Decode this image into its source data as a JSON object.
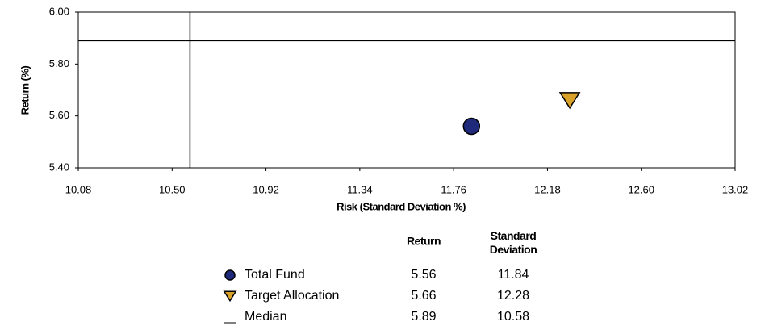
{
  "chart_data": {
    "type": "scatter",
    "xlabel": "Risk (Standard Deviation %)",
    "ylabel": "Return (%)",
    "xlim": [
      10.08,
      13.02
    ],
    "xticks": [
      10.08,
      {
        "value": 10.5,
        "label": "10.50"
      },
      10.92,
      11.34,
      11.76,
      12.18,
      {
        "value": 12.6,
        "label": "12.60"
      },
      13.02
    ],
    "ylim": [
      5.4,
      6.0
    ],
    "yticks": [
      {
        "value": 5.4,
        "label": "5.40"
      },
      {
        "value": 5.6,
        "label": "5.60"
      },
      {
        "value": 5.8,
        "label": "5.80"
      },
      {
        "value": 6.0,
        "label": "6.00"
      }
    ],
    "table_headers": [
      "Return",
      "Standard Deviation"
    ],
    "series": [
      {
        "name": "Total Fund",
        "color": "#1f2a7a",
        "marker": "circle",
        "x": [
          11.84
        ],
        "values": [
          5.56
        ]
      },
      {
        "name": "Target Allocation",
        "color": "#d9a32a",
        "marker": "triangle-down",
        "x": [
          12.28
        ],
        "values": [
          5.66
        ]
      },
      {
        "name": "Median",
        "color": "#000000",
        "marker": "line",
        "x": [
          10.58
        ],
        "values": [
          5.89
        ]
      }
    ]
  }
}
